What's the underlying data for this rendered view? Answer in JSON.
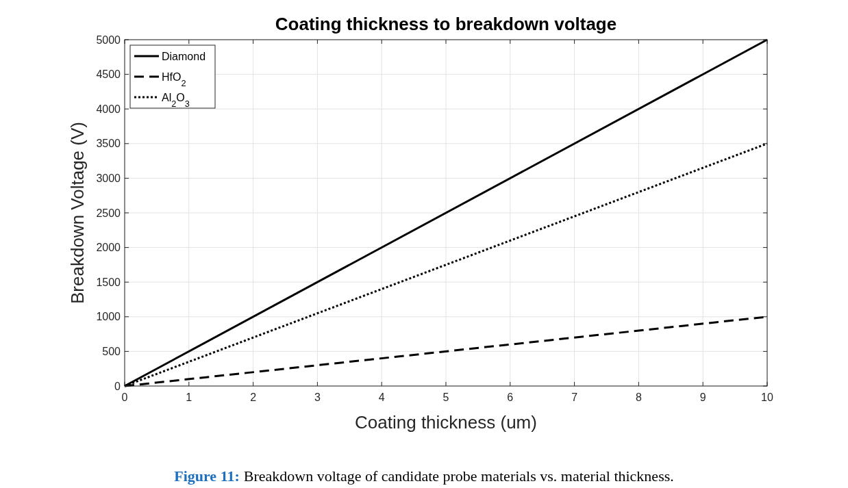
{
  "chart_data": {
    "type": "line",
    "title": "Coating thickness to breakdown voltage",
    "xlabel": "Coating thickness (um)",
    "ylabel": "Breakdown Voltage (V)",
    "x": [
      0,
      10
    ],
    "series": [
      {
        "name": "Diamond",
        "color": "#000000",
        "values": [
          0,
          5000
        ],
        "line_style": "solid"
      },
      {
        "name": "HfO$_{2}$",
        "color": "#000000",
        "values": [
          0,
          1000
        ],
        "line_style": "dashed"
      },
      {
        "name": "Al$_{2}$O$_{3}$",
        "color": "#000000",
        "values": [
          0,
          3500
        ],
        "line_style": "dotted"
      }
    ],
    "xlim": [
      0,
      10
    ],
    "xticks": [
      0,
      1,
      2,
      3,
      4,
      5,
      6,
      7,
      8,
      9,
      10
    ],
    "ylim": [
      0,
      5000
    ],
    "yticks": [
      0,
      500,
      1000,
      1500,
      2000,
      2500,
      3000,
      3500,
      4000,
      4500,
      5000
    ],
    "grid": true,
    "legend": "top left",
    "annotations": [
      "Figure 11:",
      "Breakdown voltage of candidate probe materials vs. material thickness."
    ]
  }
}
